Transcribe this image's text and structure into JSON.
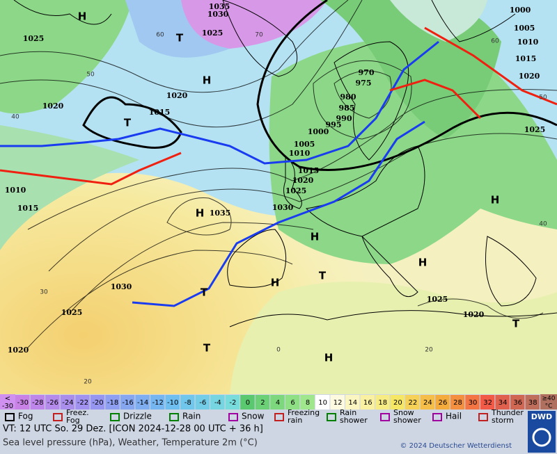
{
  "map": {
    "labels": [
      "H",
      "1035",
      "1030",
      "T",
      "1025",
      "1025",
      "1000",
      "1005",
      "1010",
      "1015",
      "1020",
      "H",
      "1020",
      "1020",
      "1015",
      "T",
      "970",
      "975",
      "980",
      "985",
      "990",
      "995",
      "1000",
      "1005",
      "1010",
      "1015",
      "1020",
      "1025",
      "1030",
      "H",
      "1035",
      "1025",
      "H",
      "1010",
      "1015",
      "H",
      "H",
      "H",
      "T",
      "1030",
      "T",
      "1025",
      "1020",
      "T",
      "1025",
      "1020",
      "T",
      "H"
    ],
    "latitudes": [
      "60",
      "70",
      "50",
      "40",
      "60",
      "50",
      "40",
      "30",
      "20",
      "20",
      "0"
    ]
  },
  "color_scale": {
    "low": [
      "<",
      "-30"
    ],
    "steps": [
      -30,
      -28,
      -26,
      -24,
      -22,
      -20,
      -18,
      -16,
      -14,
      -12,
      -10,
      -8,
      -6,
      -4,
      -2,
      0,
      2,
      4,
      6,
      8,
      10,
      12,
      14,
      16,
      18,
      20,
      22,
      24,
      26,
      28,
      30,
      32,
      34,
      36,
      38
    ],
    "high": [
      "≥40",
      "°C"
    ]
  },
  "legend": [
    [
      "Fog"
    ],
    [
      "Freez.",
      "Fog"
    ],
    [
      "Drizzle"
    ],
    [
      "Rain"
    ],
    [
      "Snow"
    ],
    [
      "Freezing",
      "rain"
    ],
    [
      "Rain",
      "shower"
    ],
    [
      "Snow",
      "shower"
    ],
    [
      "Hail"
    ],
    [
      "Thunder",
      "storm"
    ]
  ],
  "footer": {
    "valid_time": "VT: 12 UTC So.  29 Dez. [ICON 2024-12-28  00 UTC + 36 h]",
    "description": "Sea level pressure (hPa), Weather, Temperature 2m (°C)",
    "copyright": "© 2024 Deutscher Wetterdienst",
    "logo": "DWD"
  }
}
